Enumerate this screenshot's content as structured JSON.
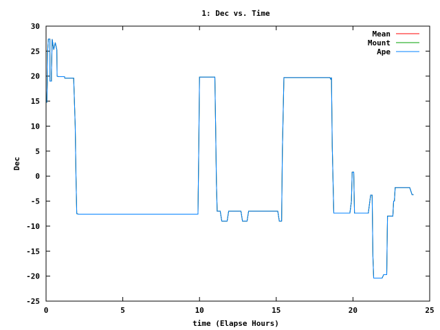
{
  "chart_data": {
    "type": "line",
    "title": "1: Dec vs. Time",
    "xlabel": "time (Elapse Hours)",
    "ylabel": "Dec",
    "xlim": [
      0,
      25
    ],
    "ylim": [
      -25,
      30
    ],
    "xticks": [
      0,
      5,
      10,
      15,
      20,
      25
    ],
    "yticks": [
      -25,
      -20,
      -15,
      -10,
      -5,
      0,
      5,
      10,
      15,
      20,
      25,
      30
    ],
    "grid": false,
    "legend_position": "top-right",
    "series": [
      {
        "name": "Mean",
        "color": "#ff0000",
        "points": [
          [
            0.05,
            14.7
          ],
          [
            0.08,
            19.0
          ],
          [
            0.1,
            24.8
          ],
          [
            0.15,
            27.4
          ],
          [
            0.25,
            27.4
          ],
          [
            0.25,
            19.0
          ],
          [
            0.35,
            19.0
          ],
          [
            0.35,
            20.5
          ],
          [
            0.4,
            27.4
          ],
          [
            0.5,
            25.3
          ],
          [
            0.6,
            26.7
          ],
          [
            0.7,
            25.3
          ],
          [
            0.72,
            20.0
          ],
          [
            0.8,
            19.9
          ],
          [
            1.2,
            19.9
          ],
          [
            1.22,
            19.6
          ],
          [
            1.8,
            19.6
          ],
          [
            1.9,
            10.0
          ],
          [
            1.95,
            0.0
          ],
          [
            2.0,
            -7.5
          ],
          [
            2.1,
            -7.6
          ],
          [
            9.0,
            -7.6
          ],
          [
            9.9,
            -7.6
          ],
          [
            9.95,
            5.0
          ],
          [
            10.0,
            19.8
          ],
          [
            11.0,
            19.8
          ],
          [
            11.05,
            10.0
          ],
          [
            11.1,
            -1.0
          ],
          [
            11.15,
            -7.0
          ],
          [
            11.35,
            -7.0
          ],
          [
            11.45,
            -9.0
          ],
          [
            11.8,
            -9.0
          ],
          [
            11.9,
            -7.0
          ],
          [
            12.7,
            -7.0
          ],
          [
            12.8,
            -9.0
          ],
          [
            13.1,
            -9.0
          ],
          [
            13.2,
            -7.0
          ],
          [
            15.1,
            -7.0
          ],
          [
            15.2,
            -9.0
          ],
          [
            15.35,
            -9.0
          ],
          [
            15.4,
            5.0
          ],
          [
            15.5,
            19.7
          ],
          [
            18.5,
            19.7
          ],
          [
            18.55,
            19.4
          ],
          [
            18.6,
            19.7
          ],
          [
            18.65,
            6.0
          ],
          [
            18.75,
            -7.4
          ],
          [
            19.8,
            -7.4
          ],
          [
            19.9,
            -5.0
          ],
          [
            19.95,
            0.8
          ],
          [
            20.05,
            0.8
          ],
          [
            20.1,
            -7.4
          ],
          [
            21.0,
            -7.4
          ],
          [
            21.1,
            -5.0
          ],
          [
            21.15,
            -3.8
          ],
          [
            21.25,
            -3.8
          ],
          [
            21.3,
            -16.0
          ],
          [
            21.35,
            -20.4
          ],
          [
            21.9,
            -20.4
          ],
          [
            22.0,
            -19.7
          ],
          [
            22.2,
            -19.7
          ],
          [
            22.25,
            -8.0
          ],
          [
            22.6,
            -8.0
          ],
          [
            22.65,
            -5.0
          ],
          [
            22.7,
            -5.0
          ],
          [
            22.75,
            -2.3
          ],
          [
            23.7,
            -2.3
          ],
          [
            23.85,
            -3.7
          ],
          [
            23.95,
            -3.7
          ]
        ]
      },
      {
        "name": "Mount",
        "color": "#00a000",
        "points": [
          [
            0.05,
            14.7
          ],
          [
            0.08,
            19.0
          ],
          [
            0.1,
            24.8
          ],
          [
            0.15,
            27.4
          ],
          [
            0.25,
            27.4
          ],
          [
            0.25,
            19.0
          ],
          [
            0.35,
            19.0
          ],
          [
            0.35,
            20.5
          ],
          [
            0.4,
            27.4
          ],
          [
            0.5,
            25.3
          ],
          [
            0.6,
            26.7
          ],
          [
            0.7,
            25.3
          ],
          [
            0.72,
            20.0
          ],
          [
            0.8,
            19.9
          ],
          [
            1.2,
            19.9
          ],
          [
            1.22,
            19.6
          ],
          [
            1.8,
            19.6
          ],
          [
            1.9,
            10.0
          ],
          [
            1.95,
            0.0
          ],
          [
            2.0,
            -7.5
          ],
          [
            2.1,
            -7.6
          ],
          [
            9.0,
            -7.6
          ],
          [
            9.9,
            -7.6
          ],
          [
            9.95,
            5.0
          ],
          [
            10.0,
            19.8
          ],
          [
            11.0,
            19.8
          ],
          [
            11.05,
            10.0
          ],
          [
            11.1,
            -1.0
          ],
          [
            11.15,
            -7.0
          ],
          [
            11.35,
            -7.0
          ],
          [
            11.45,
            -9.0
          ],
          [
            11.8,
            -9.0
          ],
          [
            11.9,
            -7.0
          ],
          [
            12.7,
            -7.0
          ],
          [
            12.8,
            -9.0
          ],
          [
            13.1,
            -9.0
          ],
          [
            13.2,
            -7.0
          ],
          [
            15.1,
            -7.0
          ],
          [
            15.2,
            -9.0
          ],
          [
            15.35,
            -9.0
          ],
          [
            15.4,
            5.0
          ],
          [
            15.5,
            19.7
          ],
          [
            18.5,
            19.7
          ],
          [
            18.55,
            19.4
          ],
          [
            18.6,
            19.7
          ],
          [
            18.65,
            6.0
          ],
          [
            18.75,
            -7.4
          ],
          [
            19.8,
            -7.4
          ],
          [
            19.9,
            -5.0
          ],
          [
            19.95,
            0.8
          ],
          [
            20.05,
            0.8
          ],
          [
            20.1,
            -7.4
          ],
          [
            21.0,
            -7.4
          ],
          [
            21.1,
            -5.0
          ],
          [
            21.15,
            -3.8
          ],
          [
            21.25,
            -3.8
          ],
          [
            21.3,
            -16.0
          ],
          [
            21.35,
            -20.4
          ],
          [
            21.9,
            -20.4
          ],
          [
            22.0,
            -19.7
          ],
          [
            22.2,
            -19.7
          ],
          [
            22.25,
            -8.0
          ],
          [
            22.6,
            -8.0
          ],
          [
            22.65,
            -5.0
          ],
          [
            22.7,
            -5.0
          ],
          [
            22.75,
            -2.3
          ],
          [
            23.7,
            -2.3
          ],
          [
            23.85,
            -3.7
          ],
          [
            23.95,
            -3.7
          ]
        ]
      },
      {
        "name": "Ape",
        "color": "#0080ff",
        "points": [
          [
            0.05,
            14.7
          ],
          [
            0.08,
            19.0
          ],
          [
            0.1,
            24.8
          ],
          [
            0.15,
            27.4
          ],
          [
            0.25,
            27.4
          ],
          [
            0.25,
            19.0
          ],
          [
            0.35,
            19.0
          ],
          [
            0.35,
            20.5
          ],
          [
            0.4,
            27.4
          ],
          [
            0.5,
            25.3
          ],
          [
            0.6,
            26.7
          ],
          [
            0.7,
            25.3
          ],
          [
            0.72,
            20.0
          ],
          [
            0.8,
            19.9
          ],
          [
            1.2,
            19.9
          ],
          [
            1.22,
            19.6
          ],
          [
            1.8,
            19.6
          ],
          [
            1.9,
            10.0
          ],
          [
            1.95,
            0.0
          ],
          [
            2.0,
            -7.5
          ],
          [
            2.1,
            -7.6
          ],
          [
            9.0,
            -7.6
          ],
          [
            9.9,
            -7.6
          ],
          [
            9.95,
            5.0
          ],
          [
            10.0,
            19.8
          ],
          [
            11.0,
            19.8
          ],
          [
            11.05,
            10.0
          ],
          [
            11.1,
            -1.0
          ],
          [
            11.15,
            -7.0
          ],
          [
            11.35,
            -7.0
          ],
          [
            11.45,
            -9.0
          ],
          [
            11.8,
            -9.0
          ],
          [
            11.9,
            -7.0
          ],
          [
            12.7,
            -7.0
          ],
          [
            12.8,
            -9.0
          ],
          [
            13.1,
            -9.0
          ],
          [
            13.2,
            -7.0
          ],
          [
            15.1,
            -7.0
          ],
          [
            15.2,
            -9.0
          ],
          [
            15.35,
            -9.0
          ],
          [
            15.4,
            5.0
          ],
          [
            15.5,
            19.7
          ],
          [
            18.5,
            19.7
          ],
          [
            18.55,
            19.4
          ],
          [
            18.6,
            19.7
          ],
          [
            18.65,
            6.0
          ],
          [
            18.75,
            -7.4
          ],
          [
            19.8,
            -7.4
          ],
          [
            19.9,
            -5.0
          ],
          [
            19.95,
            0.8
          ],
          [
            20.05,
            0.8
          ],
          [
            20.1,
            -7.4
          ],
          [
            21.0,
            -7.4
          ],
          [
            21.1,
            -5.0
          ],
          [
            21.15,
            -3.8
          ],
          [
            21.25,
            -3.8
          ],
          [
            21.3,
            -16.0
          ],
          [
            21.35,
            -20.4
          ],
          [
            21.9,
            -20.4
          ],
          [
            22.0,
            -19.7
          ],
          [
            22.2,
            -19.7
          ],
          [
            22.25,
            -8.0
          ],
          [
            22.6,
            -8.0
          ],
          [
            22.65,
            -5.0
          ],
          [
            22.7,
            -5.0
          ],
          [
            22.75,
            -2.3
          ],
          [
            23.7,
            -2.3
          ],
          [
            23.85,
            -3.7
          ],
          [
            23.95,
            -3.7
          ]
        ]
      }
    ]
  }
}
